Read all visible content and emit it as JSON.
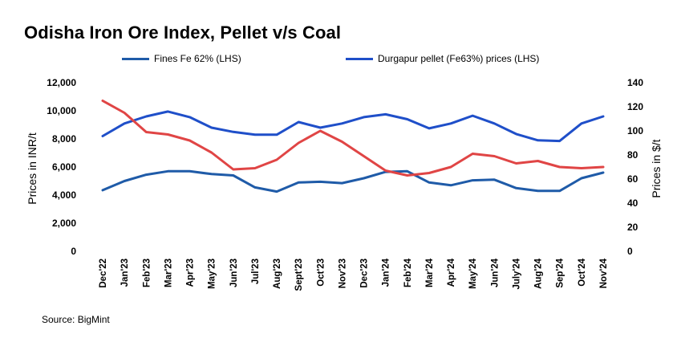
{
  "title": "Odisha Iron Ore Index, Pellet v/s Coal",
  "source": "Source: BigMint",
  "colors": {
    "fines": "#1f5ba8",
    "pellet": "#1f4fc9",
    "coal": "#e04545"
  },
  "chart_data": {
    "type": "line",
    "title": "Odisha Iron Ore Index, Pellet v/s Coal",
    "categories": [
      "Dec'22",
      "Jan'23",
      "Feb'23",
      "Mar'23",
      "Apr'23",
      "May'23",
      "Jun'23",
      "Jul'23",
      "Aug'23",
      "Sept'23",
      "Oct'23",
      "Nov'23",
      "Dec'23",
      "Jan'24",
      "Feb'24",
      "Mar'24",
      "Apr'24",
      "May'24",
      "Jun'24",
      "July'24",
      "Aug'24",
      "Sep'24",
      "Oct'24",
      "Nov'24"
    ],
    "y_left": {
      "label": "Prices in INR/t",
      "ylim": [
        0,
        12000
      ],
      "ticks": [
        "0",
        "2,000",
        "4,000",
        "6,000",
        "8,000",
        "10,000",
        "12,000"
      ]
    },
    "y_right": {
      "label": "Prices in $/t",
      "ylim": [
        0,
        140
      ],
      "ticks": [
        "0",
        "20",
        "40",
        "60",
        "80",
        "100",
        "120",
        "140"
      ]
    },
    "legend_position": "top",
    "series": [
      {
        "name": "Fines Fe 62% (LHS)",
        "axis": "left",
        "values": [
          4350,
          5000,
          5450,
          5700,
          5700,
          5500,
          5400,
          4550,
          4250,
          4900,
          4950,
          4850,
          5200,
          5650,
          5700,
          4900,
          4700,
          5050,
          5100,
          4500,
          4300,
          4300,
          5200,
          5600
        ]
      },
      {
        "name": "Durgapur pellet (Fe63%) prices (LHS)",
        "axis": "left",
        "values": [
          8200,
          9100,
          9600,
          9950,
          9550,
          8800,
          8500,
          8300,
          8300,
          9200,
          8800,
          9100,
          9550,
          9750,
          9400,
          8750,
          9100,
          9650,
          9100,
          8350,
          7900,
          7850,
          9100,
          9600
        ]
      },
      {
        "name": "",
        "axis": "right",
        "values": [
          125,
          115,
          99,
          97,
          92,
          82,
          68,
          69,
          76,
          90,
          100,
          91,
          79,
          67,
          63,
          65,
          70,
          81,
          79,
          73,
          75,
          70,
          69,
          70
        ]
      }
    ]
  }
}
